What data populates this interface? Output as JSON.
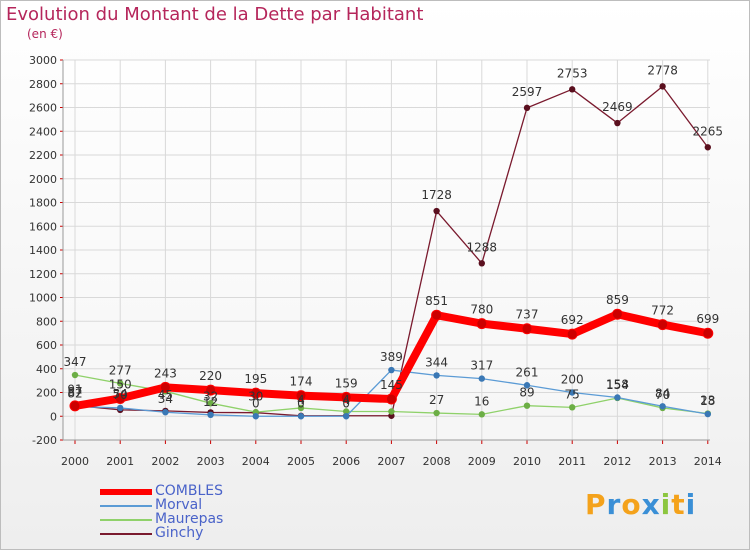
{
  "title": "Evolution du Montant de la Dette par Habitant",
  "unit": "(en €)",
  "logo": {
    "text": "Proxiti",
    "letters": [
      "P",
      "r",
      "o",
      "x",
      "i",
      "t",
      "i"
    ],
    "colors": [
      "#f4a21b",
      "#3a8fd6",
      "#f4a21b",
      "#3a8fd6",
      "#8cc63f",
      "#f4a21b",
      "#3a8fd6"
    ]
  },
  "chart_data": {
    "type": "line",
    "categories": [
      "2000",
      "2001",
      "2002",
      "2003",
      "2004",
      "2005",
      "2006",
      "2007",
      "2008",
      "2009",
      "2010",
      "2011",
      "2012",
      "2013",
      "2014"
    ],
    "ylim": [
      -200,
      3000
    ],
    "yticks": [
      -200,
      0,
      200,
      400,
      600,
      800,
      1000,
      1200,
      1400,
      1600,
      1800,
      2000,
      2200,
      2400,
      2600,
      2800,
      3000
    ],
    "grid": true,
    "legend_position": "bottom-left",
    "series": [
      {
        "name": "COMBLES",
        "color": "#ff0000",
        "values": [
          87,
          150,
          243,
          220,
          195,
          174,
          159,
          145,
          851,
          780,
          737,
          692,
          859,
          772,
          699
        ],
        "labels": [
          "87",
          "150",
          "243",
          "220",
          "195",
          "174",
          "159",
          "145",
          "851",
          "780",
          "737",
          "692",
          "859",
          "772",
          "699"
        ]
      },
      {
        "name": "Morval",
        "color": "#5b9bd5",
        "values": [
          82,
          70,
          34,
          12,
          0,
          0,
          0,
          389,
          344,
          317,
          261,
          200,
          158,
          84,
          18
        ],
        "labels": [
          "82",
          "70",
          "34",
          "12",
          "0",
          "0",
          "0",
          "389",
          "344",
          "317",
          "261",
          "200",
          "158",
          "84",
          "18"
        ]
      },
      {
        "name": "Maurepas",
        "color": "#8fd16a",
        "values": [
          347,
          277,
          210,
          110,
          35,
          70,
          40,
          40,
          27,
          16,
          89,
          75,
          154,
          70,
          23
        ],
        "labels": [
          "347",
          "277",
          "",
          "",
          "",
          "",
          "",
          "",
          "27",
          "16",
          "89",
          "75",
          "154",
          "70",
          "23"
        ]
      },
      {
        "name": "Ginchy",
        "color": "#7a1a2e",
        "values": [
          91,
          54,
          45,
          32,
          30,
          4,
          4,
          4,
          1728,
          1288,
          2597,
          2753,
          2469,
          2778,
          2265
        ],
        "labels": [
          "91",
          "54",
          "45",
          "32",
          "30",
          "4",
          "4",
          "",
          "1728",
          "1288",
          "2597",
          "2753",
          "2469",
          "2778",
          "2265"
        ]
      }
    ]
  }
}
